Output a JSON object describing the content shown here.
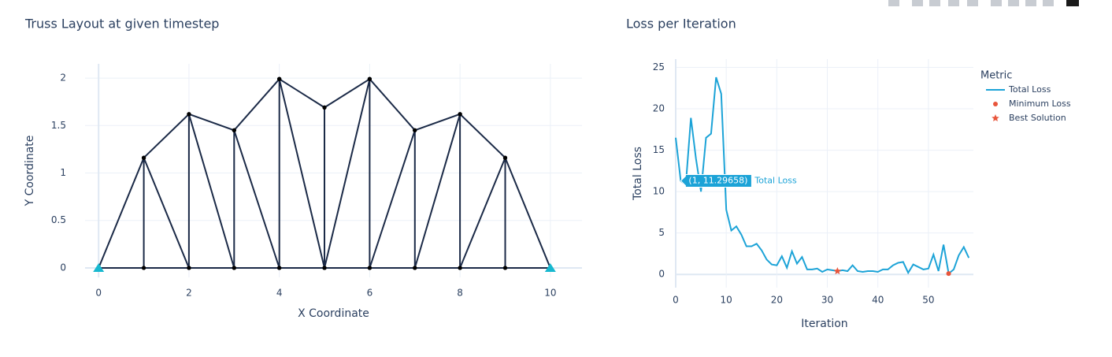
{
  "chart_data": [
    {
      "type": "line",
      "title": "Truss Layout at given timestep",
      "x_label": "X Coordinate",
      "y_label": "Y Coordinate",
      "color": "#1b2a47",
      "x": [
        0,
        1,
        2,
        3,
        4,
        5,
        6,
        7,
        8,
        9,
        10,
        null,
        0,
        1,
        2,
        3,
        4,
        5,
        6,
        7,
        8,
        9,
        10,
        null,
        1,
        1,
        null,
        2,
        2,
        null,
        3,
        3,
        null,
        4,
        4,
        null,
        5,
        5,
        null,
        6,
        6,
        null,
        7,
        7,
        null,
        8,
        8,
        null,
        9,
        9,
        null,
        1,
        2,
        null,
        2,
        3,
        null,
        3,
        4,
        null,
        4,
        5,
        null,
        6,
        5,
        null,
        7,
        6,
        null,
        8,
        7,
        null,
        9,
        8
      ],
      "values": [
        0,
        0,
        0,
        0,
        0,
        0,
        0,
        0,
        0,
        0,
        0,
        null,
        0,
        1.16,
        1.62,
        1.45,
        1.99,
        1.69,
        1.99,
        1.45,
        1.62,
        1.16,
        0,
        null,
        0,
        1.16,
        null,
        0,
        1.62,
        null,
        0,
        1.45,
        null,
        0,
        1.99,
        null,
        0,
        1.69,
        null,
        0,
        1.99,
        null,
        0,
        1.45,
        null,
        0,
        1.62,
        null,
        0,
        1.16,
        null,
        1.16,
        0,
        null,
        1.62,
        0,
        null,
        1.45,
        0,
        null,
        1.99,
        0,
        null,
        1.99,
        0,
        null,
        1.45,
        0,
        null,
        1.62,
        0,
        null,
        1.16,
        0
      ],
      "supports": {
        "x": [
          0,
          10
        ],
        "values": [
          0,
          0
        ],
        "color": "#17b8cf"
      },
      "xlim": [
        -0.3,
        10.7
      ],
      "ylim": [
        -0.1,
        2.15
      ],
      "xticks": [
        0,
        2,
        4,
        6,
        8,
        10
      ],
      "yticks": [
        0,
        0.5,
        1,
        1.5,
        2
      ],
      "grid": true
    },
    {
      "type": "line",
      "title": "Loss per Iteration",
      "x_label": "Iteration",
      "y_label": "Total Loss",
      "legend_title": "Metric",
      "x": [
        0,
        1,
        2,
        3,
        4,
        5,
        6,
        7,
        8,
        9,
        10,
        11,
        12,
        13,
        14,
        15,
        16,
        17,
        18,
        19,
        20,
        21,
        22,
        23,
        24,
        25,
        26,
        27,
        28,
        29,
        30,
        31,
        32,
        33,
        34,
        35,
        36,
        37,
        38,
        39,
        40,
        41,
        42,
        43,
        44,
        45,
        46,
        47,
        48,
        49,
        50,
        51,
        52,
        53,
        54,
        55,
        56,
        57,
        58
      ],
      "series": [
        {
          "name": "Total Loss",
          "color": "#1ca3d7",
          "values": [
            16.5,
            11.29658,
            10.8,
            18.9,
            14.0,
            10.0,
            16.5,
            17.0,
            23.8,
            21.8,
            7.8,
            5.3,
            5.8,
            4.8,
            3.4,
            3.4,
            3.7,
            2.9,
            1.8,
            1.2,
            1.1,
            2.2,
            0.8,
            2.8,
            1.3,
            2.1,
            0.6,
            0.6,
            0.7,
            0.3,
            0.6,
            0.5,
            0.4,
            0.5,
            0.4,
            1.1,
            0.4,
            0.3,
            0.4,
            0.4,
            0.3,
            0.6,
            0.6,
            1.1,
            1.4,
            1.5,
            0.2,
            1.2,
            0.9,
            0.6,
            0.7,
            2.4,
            0.4,
            3.6,
            0.1,
            0.6,
            2.3,
            3.3,
            2.0
          ]
        },
        {
          "name": "Minimum Loss",
          "color": "#e8553b",
          "marker": "circle",
          "x": [
            54
          ],
          "values": [
            0.1
          ]
        },
        {
          "name": "Best Solution",
          "color": "#e8553b",
          "marker": "star",
          "x": [
            32
          ],
          "values": [
            0.4
          ]
        }
      ],
      "hover_label": "(1, 11.29658)",
      "xlim": [
        0,
        58.9
      ],
      "ylim": [
        -1.6,
        26
      ],
      "xticks": [
        0,
        10,
        20,
        30,
        40,
        50
      ],
      "yticks": [
        0,
        5,
        10,
        15,
        20,
        25
      ],
      "grid": true
    }
  ]
}
